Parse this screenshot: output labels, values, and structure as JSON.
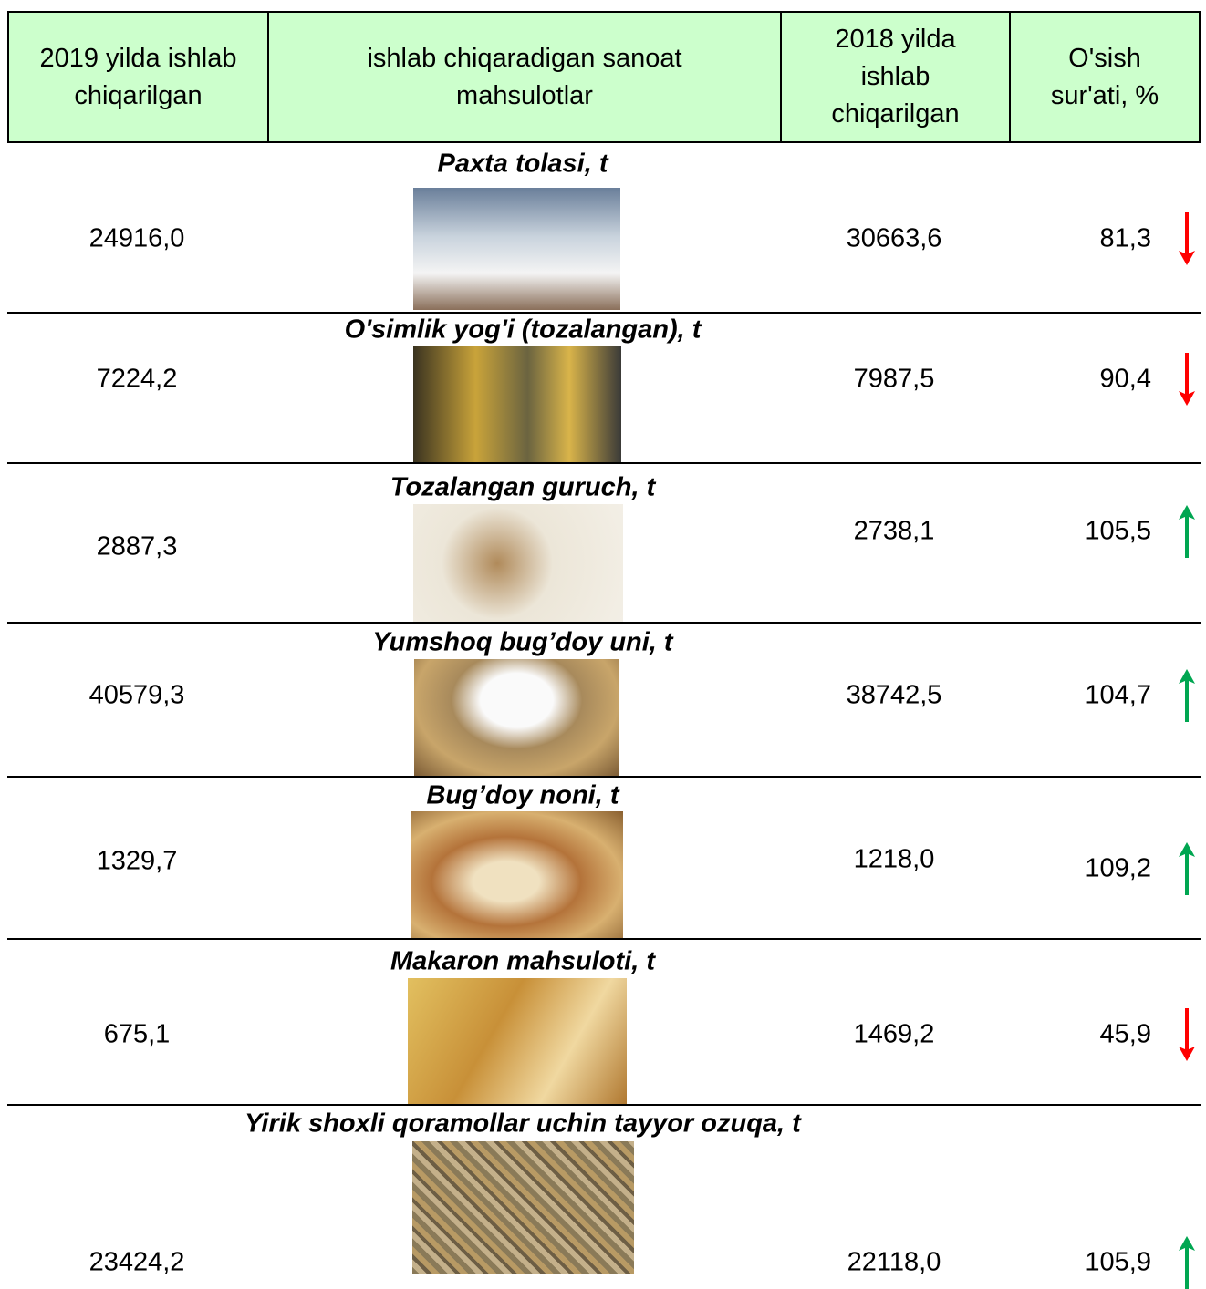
{
  "header": [
    "2019 yilda ishlab chiqarilgan",
    "ishlab chiqaradigan sanoat mahsulotlar",
    "2018 yilda ishlab chiqarilgan",
    "O'sish sur'ati, %"
  ],
  "rows": [
    {
      "product": "Paxta tolasi, t",
      "v2019": "24916,0",
      "v2018": "30663,6",
      "rate": "81,3"
    },
    {
      "product": "O'simlik yog'i (tozalangan), t",
      "v2019": "7224,2",
      "v2018": "7987,5",
      "rate": "90,4"
    },
    {
      "product": "Tozalangan guruch, t",
      "v2019": "2887,3",
      "v2018": "2738,1",
      "rate": "105,5"
    },
    {
      "product": "Yumshoq bug’doy uni, t",
      "v2019": "40579,3",
      "v2018": "38742,5",
      "rate": "104,7"
    },
    {
      "product": "Bug’doy noni, t",
      "v2019": "1329,7",
      "v2018": "1218,0",
      "rate": "109,2"
    },
    {
      "product": "Makaron mahsuloti, t",
      "v2019": "675,1",
      "v2018": "1469,2",
      "rate": "45,9"
    },
    {
      "product": "Yirik shoxli qoramollar uchin tayyor ozuqa, t",
      "v2019": "23424,2",
      "v2018": "22118,0",
      "rate": "105,9"
    }
  ]
}
